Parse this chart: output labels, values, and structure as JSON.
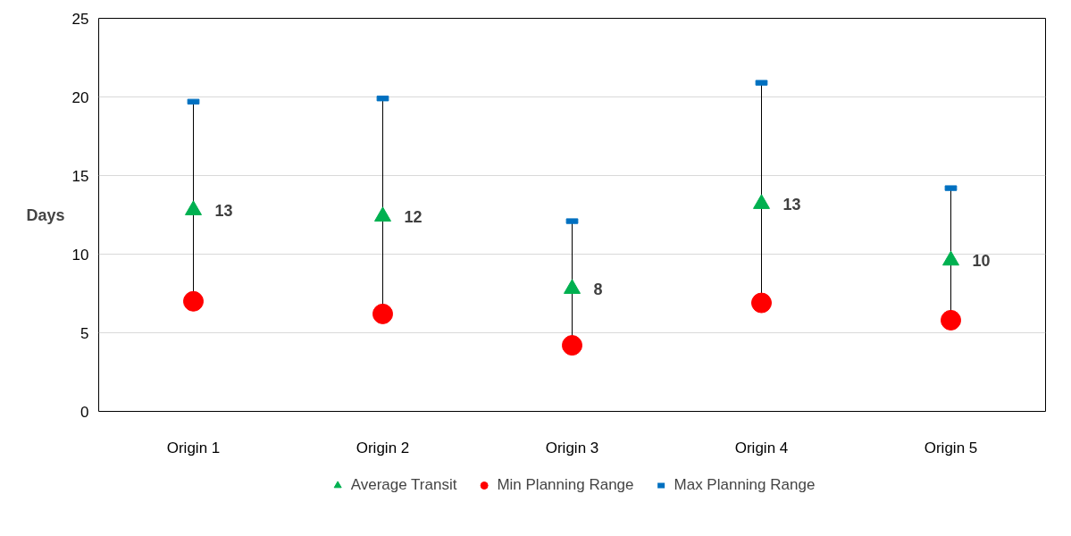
{
  "chart_data": {
    "type": "scatter",
    "ylabel": "Days",
    "categories": [
      "Origin 1",
      "Origin 2",
      "Origin 3",
      "Origin 4",
      "Origin 5"
    ],
    "series": [
      {
        "name": "Average Transit",
        "color": "#00b050",
        "marker": "triangle",
        "values": [
          12.8,
          12.4,
          7.8,
          13.2,
          9.6
        ],
        "value_labels": [
          "13",
          "12",
          "8",
          "13",
          "10"
        ]
      },
      {
        "name": "Min Planning Range",
        "color": "#ff0000",
        "marker": "circle",
        "values": [
          7.0,
          6.2,
          4.2,
          6.9,
          5.8
        ]
      },
      {
        "name": "Max Planning Range",
        "color": "#0070c0",
        "values": [
          19.7,
          19.9,
          12.1,
          20.9,
          14.2
        ]
      }
    ],
    "ylim": [
      0,
      25
    ],
    "yticks": [
      0,
      5,
      10,
      15,
      20,
      25
    ],
    "grid": "y",
    "legend": "bottom"
  }
}
